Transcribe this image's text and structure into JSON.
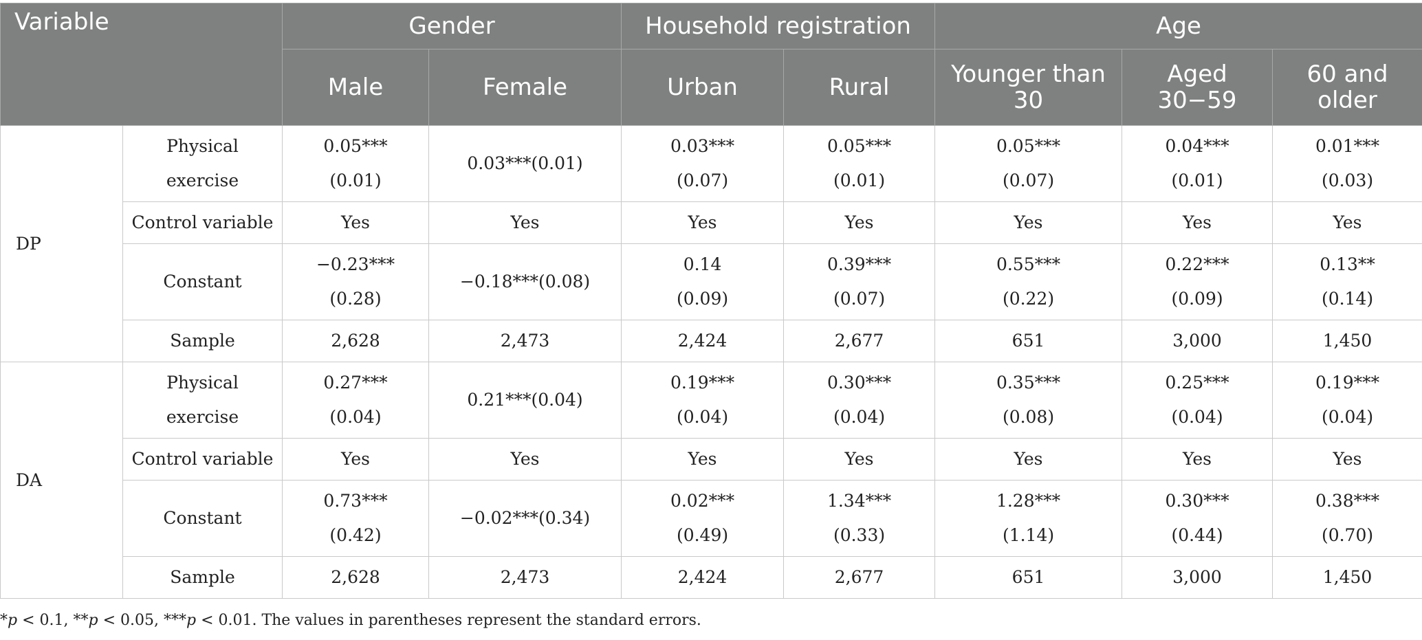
{
  "header": {
    "variable": "Variable",
    "gender": "Gender",
    "household": "Household registration",
    "age": "Age",
    "sub": [
      "Male",
      "Female",
      "Urban",
      "Rural",
      "Younger than 30",
      "Aged 30−59",
      "60 and older"
    ]
  },
  "sections": [
    {
      "group": "DP",
      "rows": [
        {
          "label": "Physical exercise",
          "cells": [
            {
              "coef": "0.05***",
              "se": "(0.01)"
            },
            {
              "text": "0.03***(0.01)"
            },
            {
              "coef": "0.03***",
              "se": "(0.07)"
            },
            {
              "coef": "0.05***",
              "se": "(0.01)"
            },
            {
              "coef": "0.05***",
              "se": "(0.07)"
            },
            {
              "coef": "0.04***",
              "se": "(0.01)"
            },
            {
              "coef": "0.01***",
              "se": "(0.03)"
            }
          ]
        },
        {
          "label": "Control variable",
          "cells": [
            {
              "text": "Yes"
            },
            {
              "text": "Yes"
            },
            {
              "text": "Yes"
            },
            {
              "text": "Yes"
            },
            {
              "text": "Yes"
            },
            {
              "text": "Yes"
            },
            {
              "text": "Yes"
            }
          ]
        },
        {
          "label": "Constant",
          "cells": [
            {
              "coef": "−0.23***",
              "se": "(0.28)"
            },
            {
              "text": "−0.18***(0.08)"
            },
            {
              "coef": "0.14",
              "se": "(0.09)"
            },
            {
              "coef": "0.39***",
              "se": "(0.07)"
            },
            {
              "coef": "0.55***",
              "se": "(0.22)"
            },
            {
              "coef": "0.22***",
              "se": "(0.09)"
            },
            {
              "coef": "0.13**",
              "se": "(0.14)"
            }
          ]
        },
        {
          "label": "Sample",
          "cells": [
            {
              "text": "2,628"
            },
            {
              "text": "2,473"
            },
            {
              "text": "2,424"
            },
            {
              "text": "2,677"
            },
            {
              "text": "651"
            },
            {
              "text": "3,000"
            },
            {
              "text": "1,450"
            }
          ]
        }
      ]
    },
    {
      "group": "DA",
      "rows": [
        {
          "label": "Physical exercise",
          "cells": [
            {
              "coef": "0.27***",
              "se": "(0.04)"
            },
            {
              "text": "0.21***(0.04)"
            },
            {
              "coef": "0.19***",
              "se": "(0.04)"
            },
            {
              "coef": "0.30***",
              "se": "(0.04)"
            },
            {
              "coef": "0.35***",
              "se": "(0.08)"
            },
            {
              "coef": "0.25***",
              "se": "(0.04)"
            },
            {
              "coef": "0.19***",
              "se": "(0.04)"
            }
          ]
        },
        {
          "label": "Control variable",
          "cells": [
            {
              "text": "Yes"
            },
            {
              "text": "Yes"
            },
            {
              "text": "Yes"
            },
            {
              "text": "Yes"
            },
            {
              "text": "Yes"
            },
            {
              "text": "Yes"
            },
            {
              "text": "Yes"
            }
          ]
        },
        {
          "label": "Constant",
          "cells": [
            {
              "coef": "0.73***",
              "se": "(0.42)"
            },
            {
              "text": "−0.02***(0.34)"
            },
            {
              "coef": "0.02***",
              "se": "(0.49)"
            },
            {
              "coef": "1.34***",
              "se": "(0.33)"
            },
            {
              "coef": "1.28***",
              "se": "(1.14)"
            },
            {
              "coef": "0.30***",
              "se": "(0.44)"
            },
            {
              "coef": "0.38***",
              "se": "(0.70)"
            }
          ]
        },
        {
          "label": "Sample",
          "cells": [
            {
              "text": "2,628"
            },
            {
              "text": "2,473"
            },
            {
              "text": "2,424"
            },
            {
              "text": "2,677"
            },
            {
              "text": "651"
            },
            {
              "text": "3,000"
            },
            {
              "text": "1,450"
            }
          ]
        }
      ]
    }
  ],
  "note": {
    "parts": [
      "*",
      "p",
      " < 0.1, **",
      "p",
      " < 0.05, ***",
      "p",
      " < 0.01. The values in parentheses represent the standard errors."
    ]
  }
}
